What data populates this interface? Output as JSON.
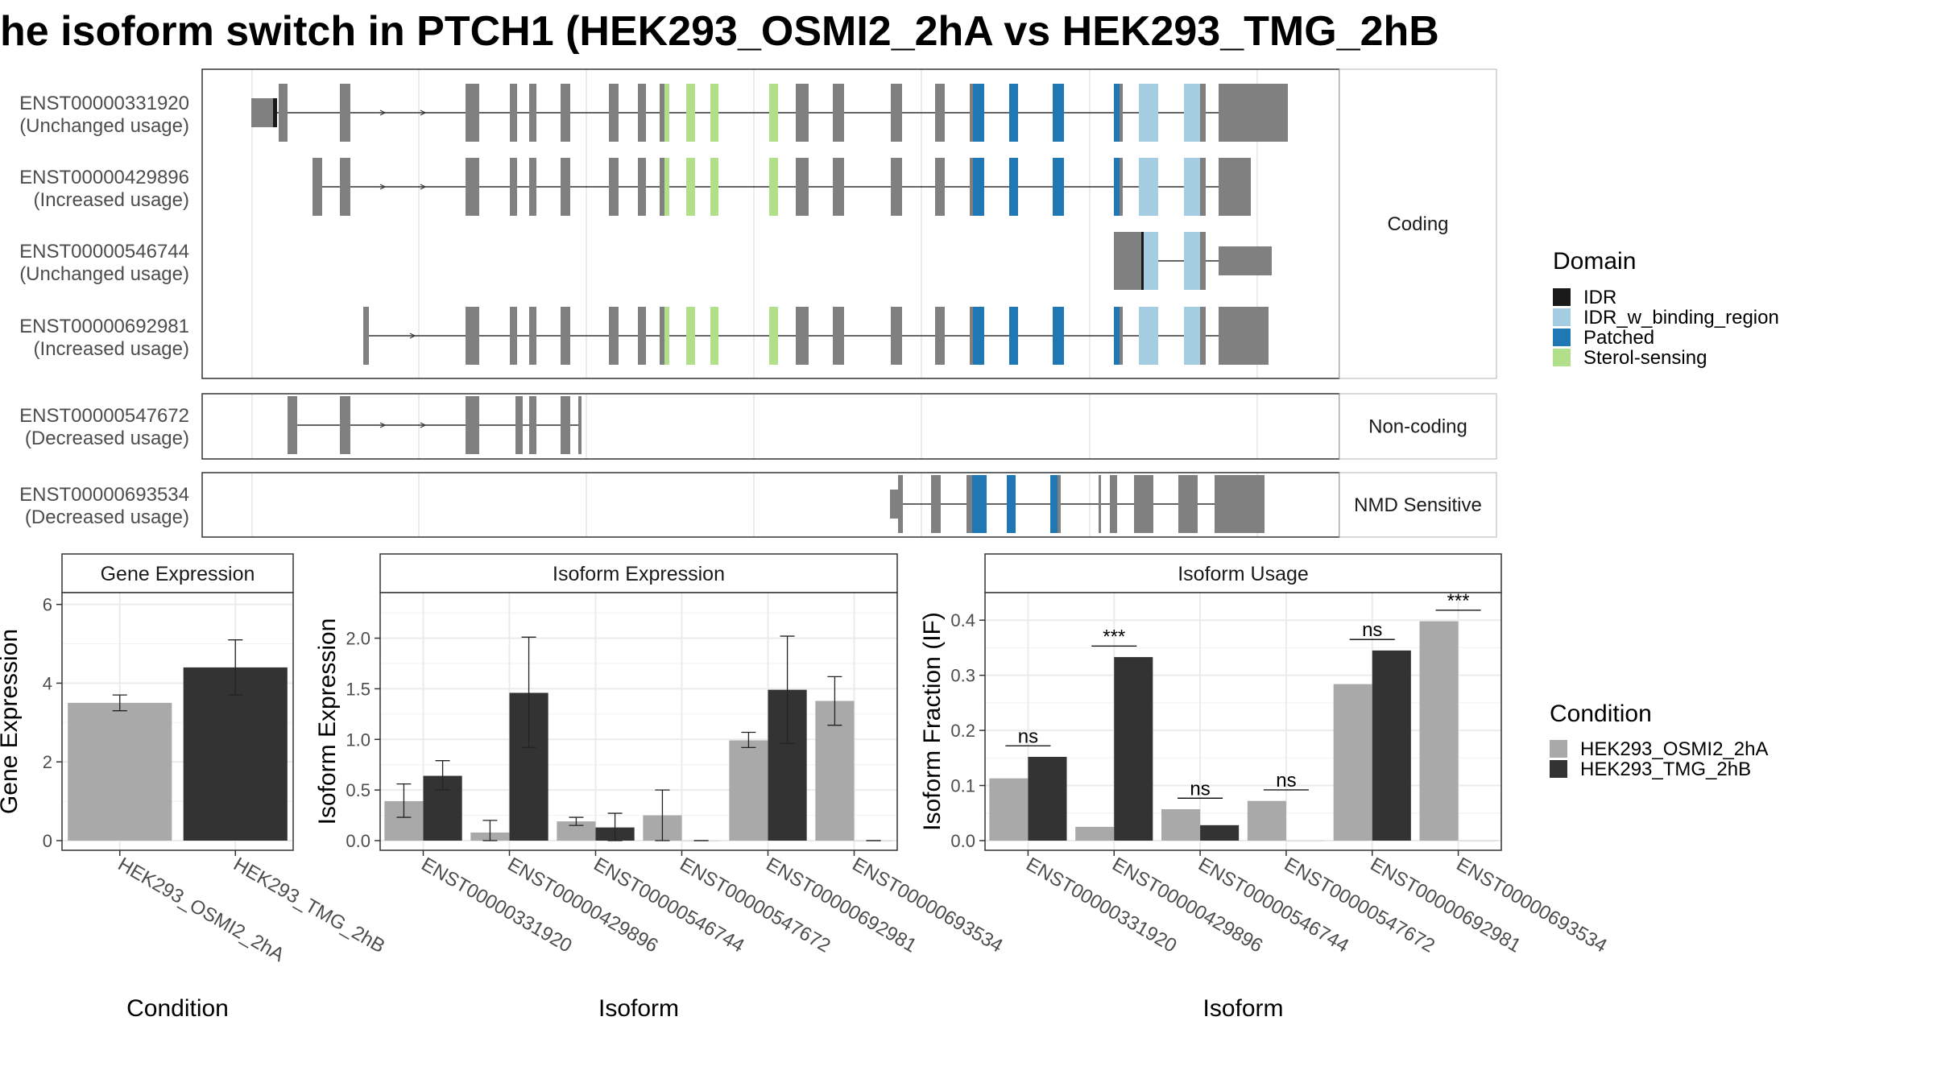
{
  "title": "he isoform switch in PTCH1 (HEK293_OSMI2_2hA vs HEK293_TMG_2hB",
  "colors": {
    "exon": "#808080",
    "IDR": "#1a1a1a",
    "IDR_w_binding_region": "#a6cee3",
    "Patched": "#1f78b4",
    "Sterol-sensing": "#b2df8a",
    "cond1": "#a9a9a9",
    "cond2": "#333333"
  },
  "structure": {
    "facets": [
      {
        "label": "Coding",
        "transcripts": [
          {
            "id": "ENST00000331920",
            "usage": "(Unchanged usage)"
          },
          {
            "id": "ENST00000429896",
            "usage": "(Increased usage)"
          },
          {
            "id": "ENST00000546744",
            "usage": "(Unchanged usage)"
          },
          {
            "id": "ENST00000692981",
            "usage": "(Increased usage)"
          }
        ]
      },
      {
        "label": "Non-coding",
        "transcripts": [
          {
            "id": "ENST00000547672",
            "usage": "(Decreased usage)"
          }
        ]
      },
      {
        "label": "NMD Sensitive",
        "transcripts": [
          {
            "id": "ENST00000693534",
            "usage": "(Decreased usage)"
          }
        ]
      }
    ]
  },
  "legend_domain": {
    "title": "Domain",
    "items": [
      {
        "label": "IDR",
        "color": "#1a1a1a"
      },
      {
        "label": "IDR_w_binding_region",
        "color": "#a6cee3"
      },
      {
        "label": "Patched",
        "color": "#1f78b4"
      },
      {
        "label": "Sterol-sensing",
        "color": "#b2df8a"
      }
    ]
  },
  "legend_condition": {
    "title": "Condition",
    "items": [
      {
        "label": "HEK293_OSMI2_2hA",
        "color": "#a9a9a9"
      },
      {
        "label": "HEK293_TMG_2hB",
        "color": "#333333"
      }
    ]
  },
  "chart_data": [
    {
      "type": "bar",
      "title": "Gene Expression",
      "xlabel": "Condition",
      "ylabel": "Gene Expression",
      "ylim": [
        0,
        6.3
      ],
      "yticks": [
        0,
        2,
        4,
        6
      ],
      "categories": [
        "HEK293_OSMI2_2hA",
        "HEK293_TMG_2hB"
      ],
      "values": [
        3.5,
        4.4
      ],
      "errors": [
        [
          3.3,
          3.7
        ],
        [
          3.7,
          5.1
        ]
      ]
    },
    {
      "type": "bar",
      "title": "Isoform Expression",
      "xlabel": "Isoform",
      "ylabel": "Isoform Expression",
      "ylim": [
        0,
        2.45
      ],
      "yticks": [
        0.0,
        0.5,
        1.0,
        1.5,
        2.0
      ],
      "categories": [
        "ENST00000331920",
        "ENST00000429896",
        "ENST00000546744",
        "ENST00000547672",
        "ENST00000692981",
        "ENST00000693534"
      ],
      "series": [
        {
          "name": "HEK293_OSMI2_2hA",
          "values": [
            0.39,
            0.08,
            0.19,
            0.25,
            0.99,
            1.38
          ],
          "errors": [
            [
              0.23,
              0.56
            ],
            [
              0.0,
              0.2
            ],
            [
              0.15,
              0.23
            ],
            [
              0.0,
              0.5
            ],
            [
              0.92,
              1.07
            ],
            [
              1.14,
              1.62
            ]
          ]
        },
        {
          "name": "HEK293_TMG_2hB",
          "values": [
            0.64,
            1.46,
            0.13,
            0.0,
            1.49,
            0.0
          ],
          "errors": [
            [
              0.5,
              0.79
            ],
            [
              0.92,
              2.01
            ],
            [
              0.0,
              0.27
            ],
            [
              0.0,
              0.0
            ],
            [
              0.96,
              2.02
            ],
            [
              0.0,
              0.0
            ]
          ]
        }
      ]
    },
    {
      "type": "bar",
      "title": "Isoform Usage",
      "xlabel": "Isoform",
      "ylabel": "Isoform Fraction (IF)",
      "ylim": [
        0,
        0.45
      ],
      "yticks": [
        0.0,
        0.1,
        0.2,
        0.3,
        0.4
      ],
      "categories": [
        "ENST00000331920",
        "ENST00000429896",
        "ENST00000546744",
        "ENST00000547672",
        "ENST00000692981",
        "ENST00000693534"
      ],
      "series": [
        {
          "name": "HEK293_OSMI2_2hA",
          "values": [
            0.113,
            0.025,
            0.057,
            0.072,
            0.284,
            0.398
          ]
        },
        {
          "name": "HEK293_TMG_2hB",
          "values": [
            0.152,
            0.333,
            0.028,
            0.0,
            0.345,
            0.0
          ]
        }
      ],
      "significance": [
        "ns",
        "***",
        "ns",
        "ns",
        "ns",
        "***"
      ],
      "significance_y": [
        0.172,
        0.353,
        0.077,
        0.092,
        0.365,
        0.418
      ]
    }
  ]
}
